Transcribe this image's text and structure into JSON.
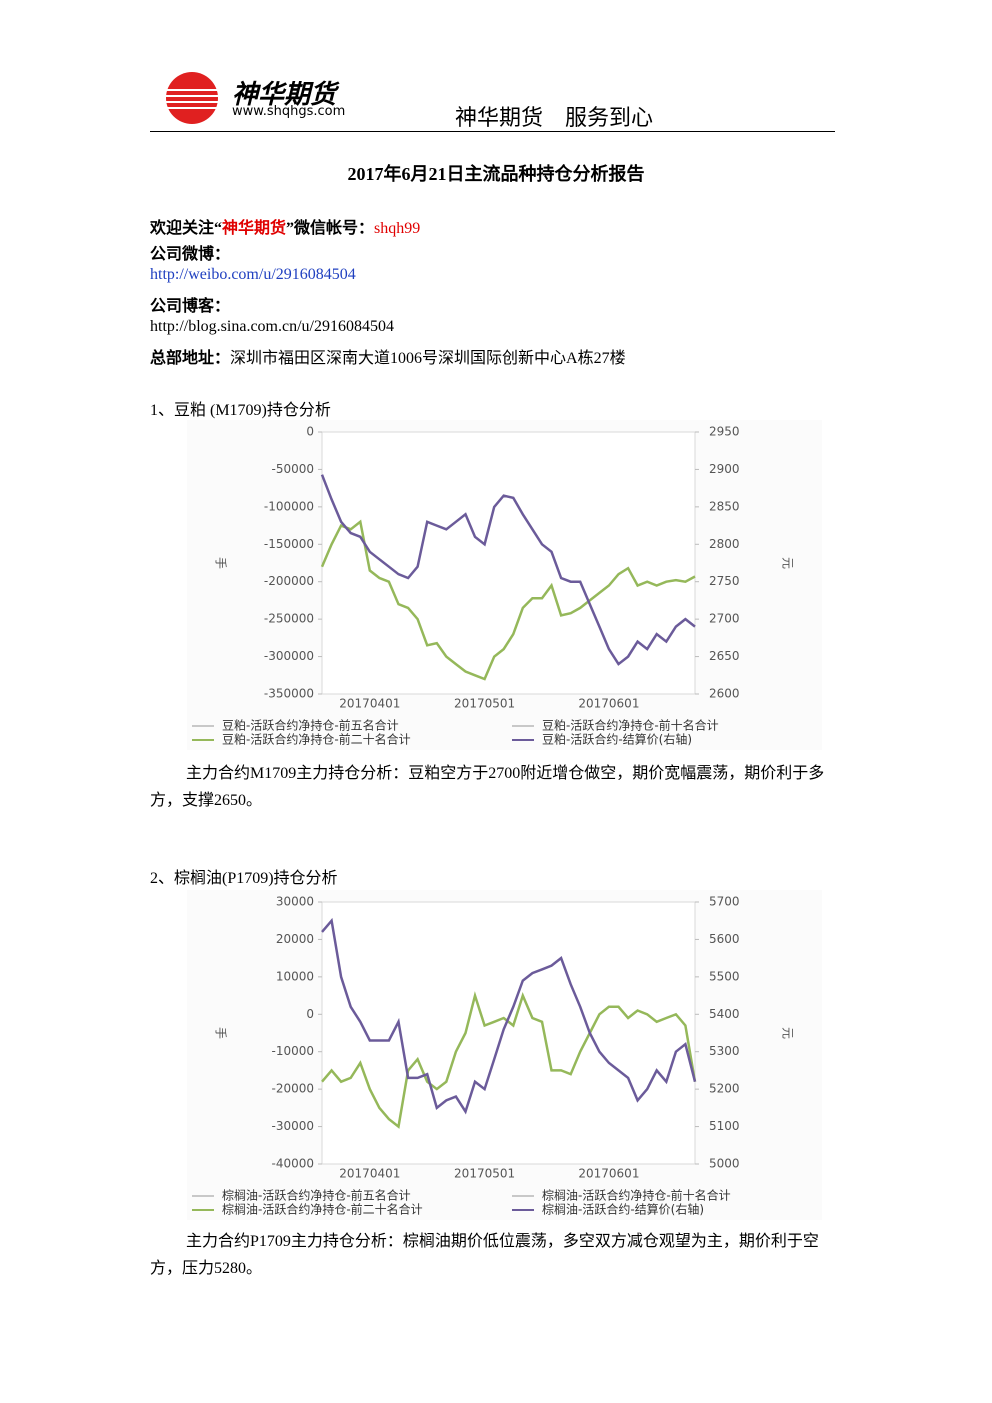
{
  "header": {
    "logo_text": "神华期货",
    "logo_url": "www.shqhgs.com",
    "slogan": "神华期货　服务到心"
  },
  "title": "2017年6月21日主流品种持仓分析报告",
  "intro": {
    "wechat_prefix": "欢迎关注“",
    "wechat_name": "神华期货",
    "wechat_mid": "”微信帐号：",
    "wechat_account": "shqh99",
    "weibo_label": "公司微博：",
    "weibo_url": "http://weibo.com/u/2916084504",
    "blog_label": "公司博客：",
    "blog_url": "http://blog.sina.com.cn/u/2916084504",
    "address_label": "总部地址：",
    "address": "深圳市福田区深南大道1006号深圳国际创新中心A栋27楼"
  },
  "sections": [
    {
      "heading": "1、豆粕 (M1709)持仓分析",
      "analysis": "主力合约M1709主力持仓分析：豆粕空方于2700附近增仓做空，期价宽幅震荡，期价利于多方，支撑2650。"
    },
    {
      "heading": "2、棕榈油(P1709)持仓分析",
      "analysis": "主力合约P1709主力持仓分析：棕榈油期价低位震荡，多空双方减仓观望为主，期价利于空方，压力5280。"
    }
  ],
  "chart_data": [
    {
      "type": "line",
      "ylabel": "手",
      "y2label": "元",
      "ylim": [
        -350000,
        0
      ],
      "yticks": [
        0,
        -50000,
        -100000,
        -150000,
        -200000,
        -250000,
        -300000,
        -350000
      ],
      "y2lim": [
        2600,
        2950
      ],
      "y2ticks": [
        2950,
        2900,
        2850,
        2800,
        2750,
        2700,
        2650,
        2600
      ],
      "categories": [
        null,
        null,
        null,
        null,
        null,
        "20170401",
        null,
        null,
        null,
        null,
        null,
        null,
        null,
        null,
        null,
        null,
        null,
        "20170501",
        null,
        null,
        null,
        null,
        null,
        null,
        null,
        null,
        null,
        null,
        null,
        null,
        "20170601",
        null,
        null,
        null,
        null,
        null,
        null,
        null,
        null,
        null
      ],
      "series": [
        {
          "name": "豆粕-活跃合约净持仓-前五名合计",
          "color": "#c8c8c8",
          "values": [
            null,
            null,
            null,
            null,
            null,
            null,
            null,
            null,
            null,
            null,
            null,
            null,
            null,
            null,
            null,
            null,
            null,
            null,
            null,
            null,
            null,
            null,
            null,
            null,
            null,
            null,
            null,
            null,
            null,
            null,
            null,
            null,
            null,
            null,
            null,
            null,
            null,
            null,
            null,
            null
          ]
        },
        {
          "name": "豆粕-活跃合约净持仓-前十名合计",
          "color": "#c8c8c8",
          "values": [
            null,
            null,
            null,
            null,
            null,
            null,
            null,
            null,
            null,
            null,
            null,
            null,
            null,
            null,
            null,
            null,
            null,
            null,
            null,
            null,
            null,
            null,
            null,
            null,
            null,
            null,
            null,
            null,
            null,
            null,
            null,
            null,
            null,
            null,
            null,
            null,
            null,
            null,
            null,
            null
          ]
        },
        {
          "name": "豆粕-活跃合约净持仓-前二十名合计",
          "color": "#95b85a",
          "values": [
            -180000,
            -150000,
            -125000,
            -130000,
            -120000,
            -185000,
            -195000,
            -200000,
            -230000,
            -235000,
            -250000,
            -285000,
            -282000,
            -300000,
            -310000,
            -320000,
            -325000,
            -330000,
            -300000,
            -290000,
            -270000,
            -235000,
            -222000,
            -222000,
            -205000,
            -245000,
            -242000,
            -235000,
            -225000,
            -215000,
            -205000,
            -190000,
            -182000,
            -205000,
            -200000,
            -205000,
            -200000,
            -198000,
            -200000,
            -193000
          ]
        },
        {
          "name": "豆粕-活跃合约-结算价(右轴)",
          "color": "#6b5b9a",
          "axis": "y2",
          "values": [
            2893,
            2860,
            2830,
            2815,
            2810,
            2790,
            2780,
            2770,
            2760,
            2755,
            2770,
            2830,
            2825,
            2820,
            2830,
            2840,
            2810,
            2800,
            2850,
            2865,
            2862,
            2840,
            2820,
            2800,
            2790,
            2755,
            2750,
            2750,
            2720,
            2690,
            2660,
            2640,
            2650,
            2670,
            2660,
            2680,
            2670,
            2690,
            2700,
            2690
          ]
        }
      ]
    },
    {
      "type": "line",
      "ylabel": "手",
      "y2label": "元",
      "ylim": [
        -40000,
        30000
      ],
      "yticks": [
        30000,
        20000,
        10000,
        0,
        -10000,
        -20000,
        -30000,
        -40000
      ],
      "y2lim": [
        5000,
        5700
      ],
      "y2ticks": [
        5700,
        5600,
        5500,
        5400,
        5300,
        5200,
        5100,
        5000
      ],
      "categories": [
        null,
        null,
        null,
        null,
        null,
        "20170401",
        null,
        null,
        null,
        null,
        null,
        null,
        null,
        null,
        null,
        null,
        null,
        "20170501",
        null,
        null,
        null,
        null,
        null,
        null,
        null,
        null,
        null,
        null,
        null,
        null,
        "20170601",
        null,
        null,
        null,
        null,
        null,
        null,
        null,
        null,
        null
      ],
      "series": [
        {
          "name": "棕榈油-活跃合约净持仓-前五名合计",
          "color": "#c8c8c8",
          "values": [
            null,
            null,
            null,
            null,
            null,
            null,
            null,
            null,
            null,
            null,
            null,
            null,
            null,
            null,
            null,
            null,
            null,
            null,
            null,
            null,
            null,
            null,
            null,
            null,
            null,
            null,
            null,
            null,
            null,
            null,
            null,
            null,
            null,
            null,
            null,
            null,
            null,
            null,
            null,
            null
          ]
        },
        {
          "name": "棕榈油-活跃合约净持仓-前十名合计",
          "color": "#c8c8c8",
          "values": [
            null,
            null,
            null,
            null,
            null,
            null,
            null,
            null,
            null,
            null,
            null,
            null,
            null,
            null,
            null,
            null,
            null,
            null,
            null,
            null,
            null,
            null,
            null,
            null,
            null,
            null,
            null,
            null,
            null,
            null,
            null,
            null,
            null,
            null,
            null,
            null,
            null,
            null,
            null,
            null
          ]
        },
        {
          "name": "棕榈油-活跃合约净持仓-前二十名合计",
          "color": "#95b85a",
          "values": [
            -18000,
            -15000,
            -18000,
            -17000,
            -13000,
            -20000,
            -25000,
            -28000,
            -30000,
            -15000,
            -12000,
            -18000,
            -20000,
            -18000,
            -10000,
            -5000,
            5000,
            -3000,
            -2000,
            -1000,
            -3000,
            5000,
            -1000,
            -2000,
            -15000,
            -15000,
            -16000,
            -10000,
            -5000,
            0,
            2000,
            2000,
            -1000,
            1000,
            0,
            -2000,
            -1000,
            0,
            -3000,
            -18000
          ]
        },
        {
          "name": "棕榈油-活跃合约-结算价(右轴)",
          "color": "#6b5b9a",
          "axis": "y2",
          "values": [
            5620,
            5650,
            5500,
            5420,
            5380,
            5330,
            5330,
            5330,
            5380,
            5230,
            5230,
            5240,
            5150,
            5170,
            5180,
            5140,
            5220,
            5200,
            5280,
            5360,
            5420,
            5490,
            5510,
            5520,
            5530,
            5550,
            5480,
            5420,
            5350,
            5300,
            5270,
            5250,
            5230,
            5170,
            5200,
            5250,
            5220,
            5300,
            5320,
            5220
          ]
        }
      ]
    }
  ]
}
